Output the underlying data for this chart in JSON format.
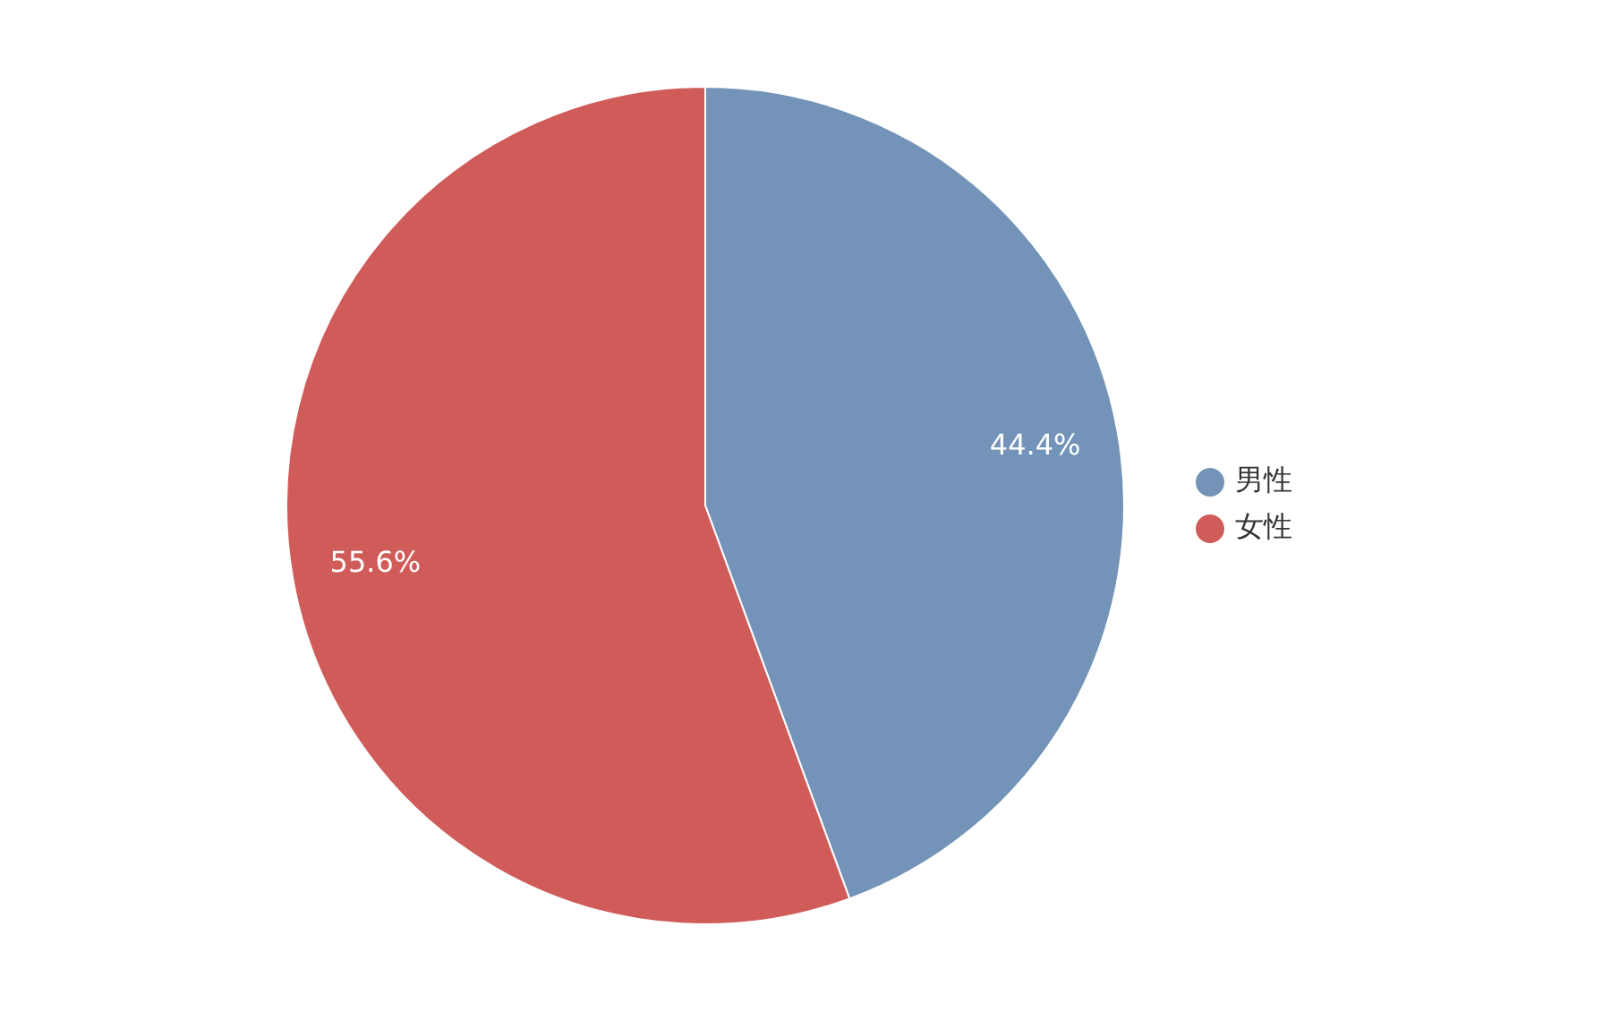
{
  "chart_data": {
    "type": "pie",
    "categories": [
      "男性",
      "女性"
    ],
    "values": [
      44.4,
      55.6
    ],
    "value_labels": [
      "44.4%",
      "55.6%"
    ],
    "colors": [
      "#7394b8",
      "#d05c5a"
    ],
    "legend": "right"
  }
}
